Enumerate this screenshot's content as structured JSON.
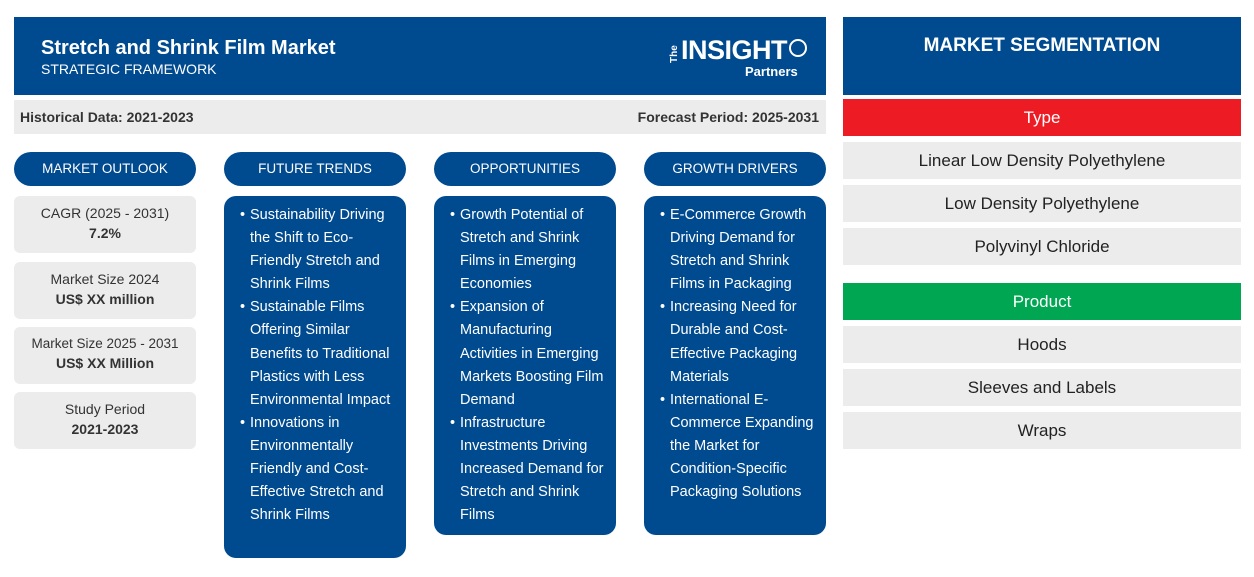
{
  "header": {
    "title": "Stretch and Shrink Film Market",
    "subtitle": "STRATEGIC FRAMEWORK",
    "logo": {
      "the": "The",
      "insight": "INSIGHT",
      "partners": "Partners"
    }
  },
  "data_bar": {
    "historical": "Historical Data: 2021-2023",
    "forecast": "Forecast Period: 2025-2031"
  },
  "outlook": {
    "heading": "MARKET OUTLOOK",
    "stats": [
      {
        "label": "CAGR (2025 - 2031)",
        "value": "7.2%"
      },
      {
        "label": "Market Size 2024",
        "value": "US$ XX million"
      },
      {
        "label": "Market Size 2025 - 2031",
        "value": "US$ XX Million"
      },
      {
        "label": "Study Period",
        "value": "2021-2023"
      }
    ]
  },
  "future_trends": {
    "heading": "FUTURE TRENDS",
    "items": [
      "Sustainability Driving the Shift to Eco-Friendly Stretch and Shrink Films",
      "Sustainable Films Offering Similar Benefits to Traditional Plastics with Less Environmental Impact",
      "Innovations in Environmentally Friendly and Cost-Effective Stretch and Shrink Films"
    ]
  },
  "opportunities": {
    "heading": "OPPORTUNITIES",
    "items": [
      "Growth Potential of Stretch and Shrink Films in Emerging Economies",
      "Expansion of Manufacturing Activities in Emerging Markets Boosting Film Demand",
      "Infrastructure Investments Driving Increased Demand for Stretch and Shrink Films"
    ]
  },
  "growth_drivers": {
    "heading": "GROWTH DRIVERS",
    "items": [
      "E-Commerce Growth Driving Demand for Stretch and Shrink Films in Packaging",
      "Increasing Need for Durable and Cost-Effective Packaging Materials",
      "International E-Commerce Expanding the Market for Condition-Specific Packaging Solutions"
    ]
  },
  "segmentation": {
    "title": "MARKET SEGMENTATION",
    "type": {
      "heading": "Type",
      "color": "#ed1c24",
      "items": [
        "Linear Low Density Polyethylene",
        "Low Density Polyethylene",
        "Polyvinyl Chloride"
      ]
    },
    "product": {
      "heading": "Product",
      "color": "#00a651",
      "items": [
        "Hoods",
        "Sleeves and Labels",
        "Wraps"
      ]
    }
  },
  "colors": {
    "primary": "#004a8f",
    "panel": "#ececec"
  }
}
